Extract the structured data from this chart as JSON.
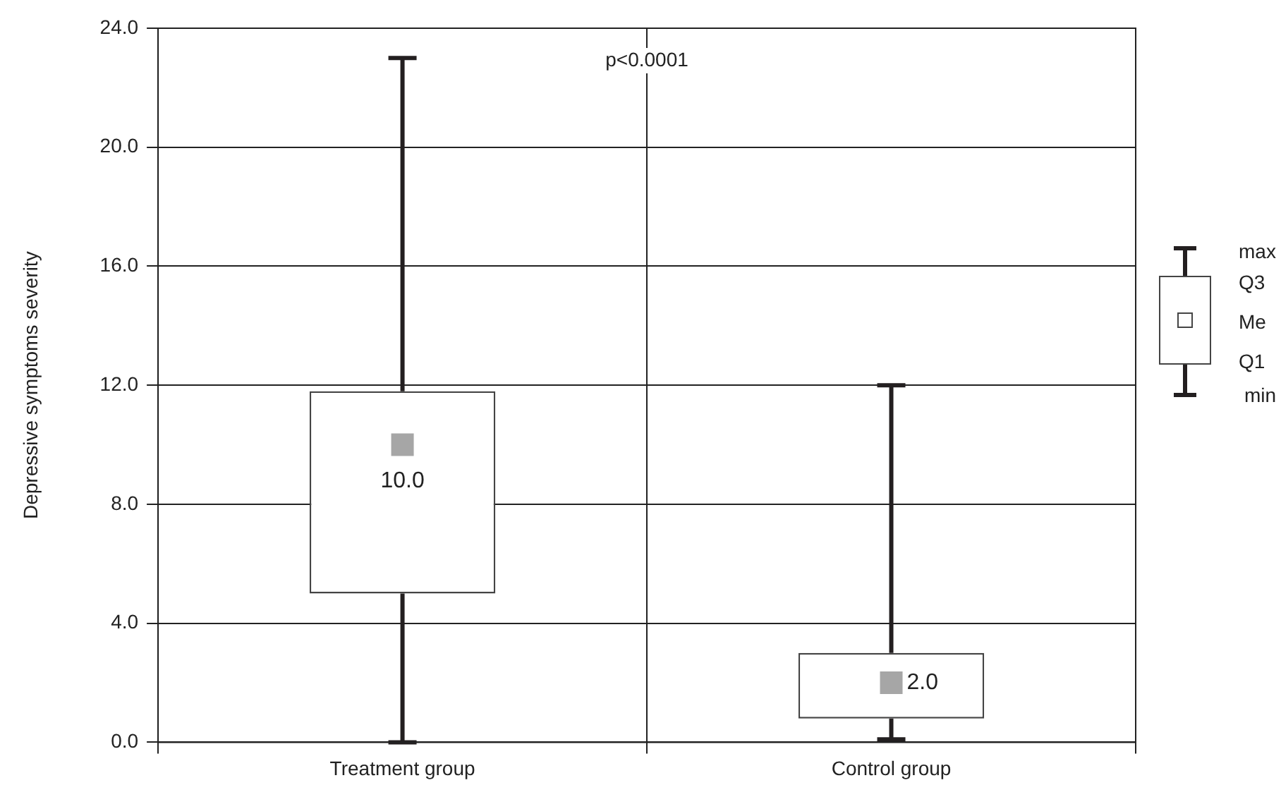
{
  "chart_data": {
    "type": "box",
    "ylabel": "Depressive symptoms severity",
    "categories": [
      "Treatment group",
      "Control group"
    ],
    "series": [
      {
        "color": "#444444",
        "boxes": [
          {
            "low": 0,
            "q1": 5.0,
            "median": 10.0,
            "q3": 11.8,
            "high": 23.0
          },
          {
            "low": 0.1,
            "q1": 0.8,
            "median": 2.0,
            "q3": 3.0,
            "high": 12.0
          }
        ]
      }
    ],
    "value_labels": [
      "10.0",
      "2.0"
    ],
    "ylim": [
      0,
      24
    ],
    "yticks": [
      {
        "value": 0,
        "label": "0.0"
      },
      {
        "value": 4,
        "label": "4.0"
      },
      {
        "value": 8,
        "label": "8.0"
      },
      {
        "value": 12,
        "label": "12.0"
      },
      {
        "value": 16,
        "label": "16.0"
      },
      {
        "value": 20,
        "label": "20.0"
      },
      {
        "value": 24,
        "label": "24.0"
      }
    ],
    "grid": true,
    "annotations": [
      "p<0.0001",
      "max",
      "Q3",
      "Me",
      "Q1",
      "min"
    ]
  }
}
